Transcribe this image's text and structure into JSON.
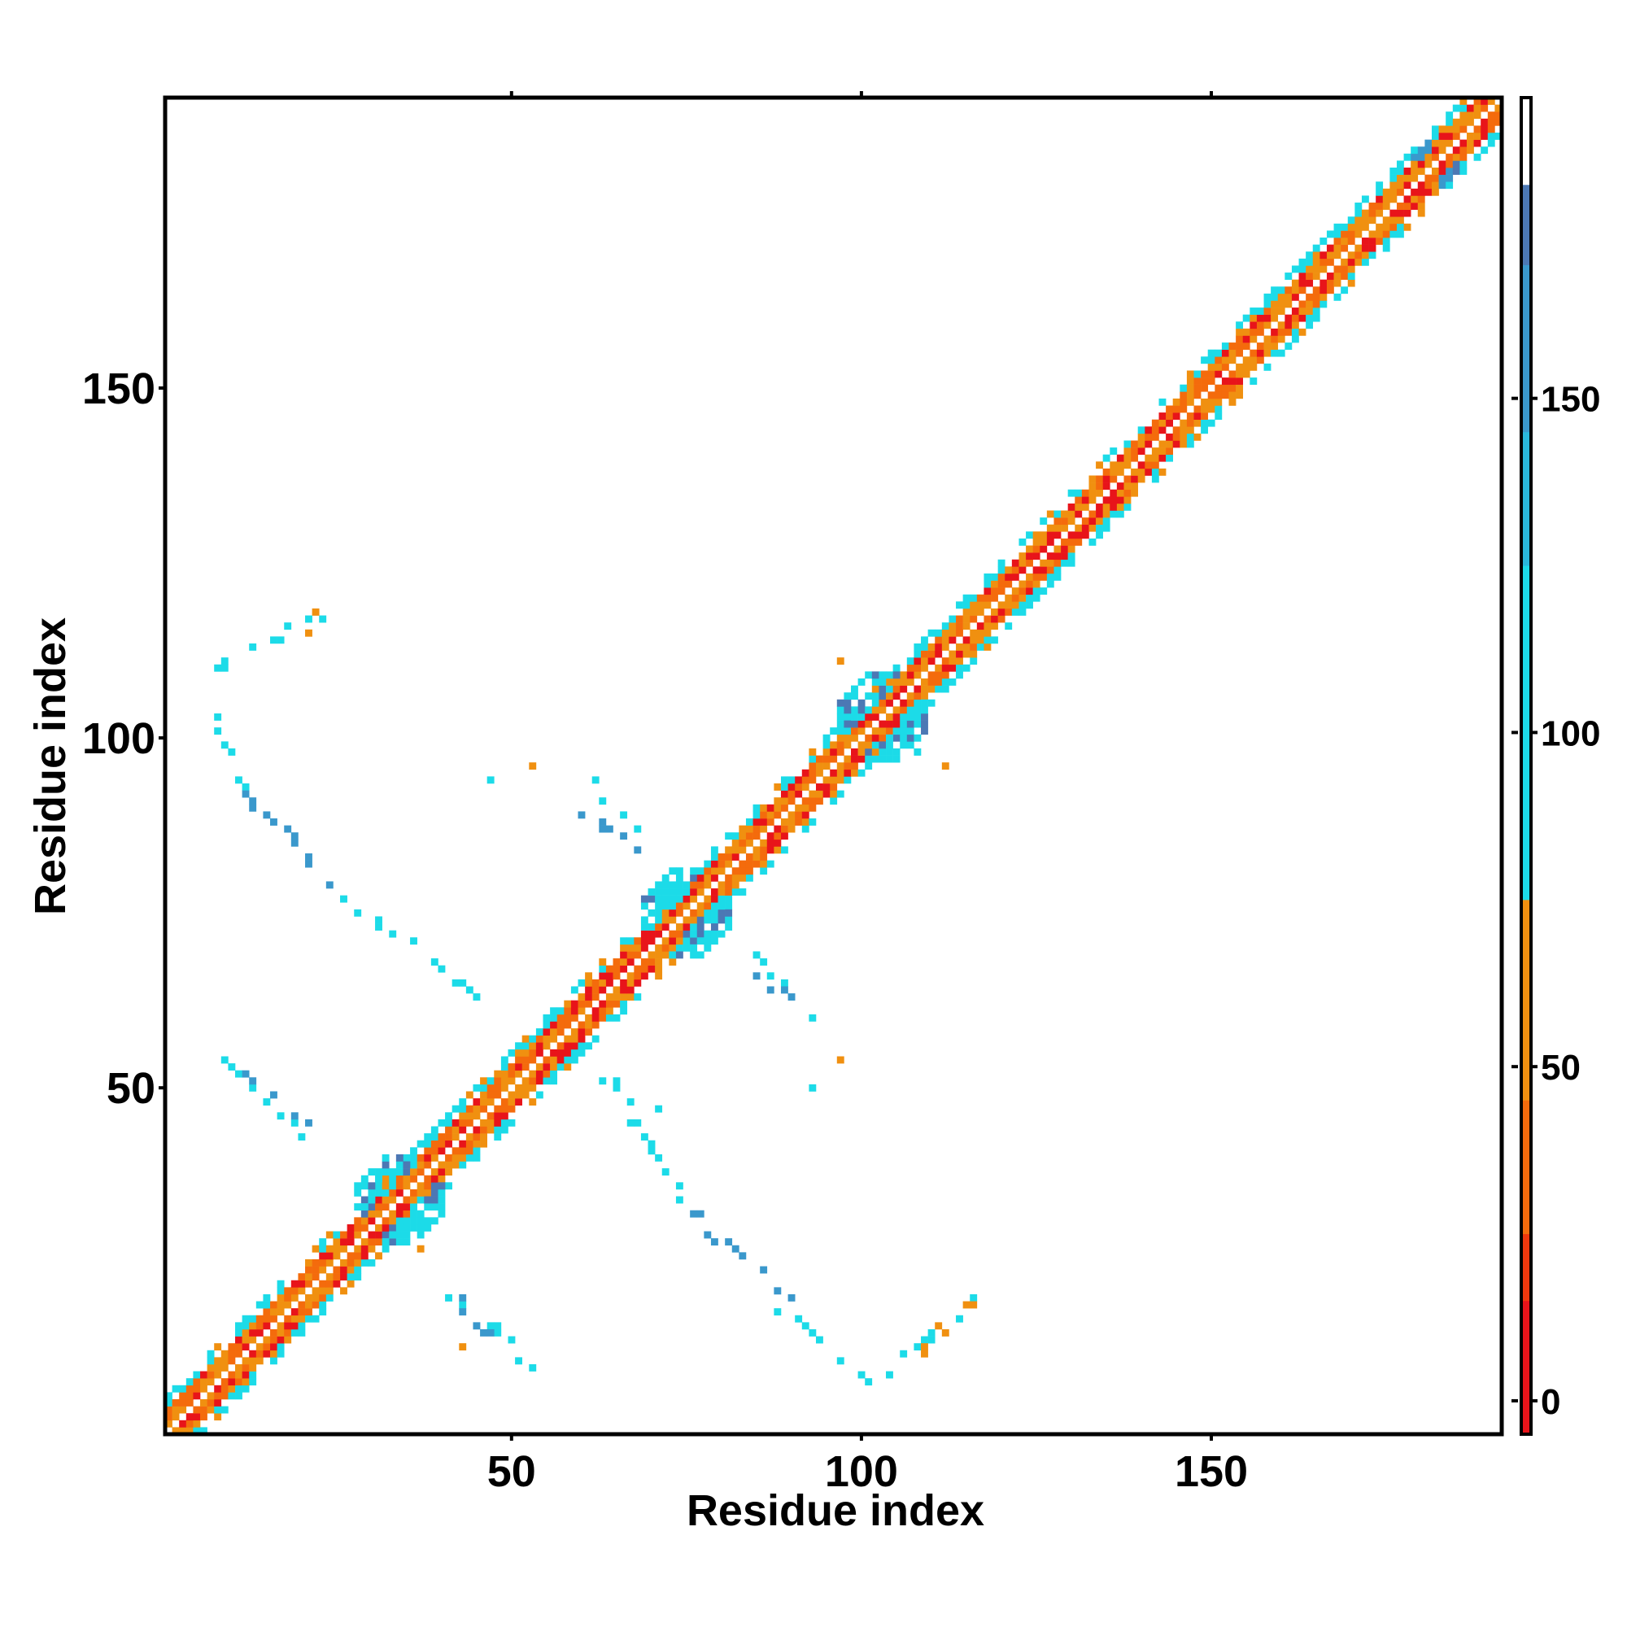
{
  "chart_data": {
    "type": "heatmap",
    "title": "",
    "xlabel": "Residue index",
    "ylabel": "Residue index",
    "xlim": [
      1,
      191
    ],
    "ylim": [
      1,
      191
    ],
    "x_ticks": [
      50,
      100,
      150
    ],
    "y_ticks": [
      50,
      100,
      150
    ],
    "colorbar": {
      "ticks": [
        0,
        50,
        100,
        150
      ],
      "range": [
        -5,
        195
      ],
      "bands": [
        {
          "from": -5,
          "to": 0,
          "color": "#e8141a"
        },
        {
          "from": 0,
          "to": 15,
          "color": "#e8141a"
        },
        {
          "from": 15,
          "to": 25,
          "color": "#f0380d"
        },
        {
          "from": 25,
          "to": 45,
          "color": "#f46b0c"
        },
        {
          "from": 45,
          "to": 75,
          "color": "#f09010"
        },
        {
          "from": 75,
          "to": 125,
          "color": "#1cdbe8"
        },
        {
          "from": 125,
          "to": 145,
          "color": "#2ab8dc"
        },
        {
          "from": 145,
          "to": 170,
          "color": "#3a98cc"
        },
        {
          "from": 170,
          "to": 182,
          "color": "#4c78b4"
        },
        {
          "from": 182,
          "to": 195,
          "color": "#ffffff"
        }
      ]
    },
    "palette": {
      "red": "#e8141a",
      "orange_red": "#f46b0c",
      "orange": "#f09010",
      "cyan": "#1cdbe8",
      "steel": "#3a98cc",
      "blue": "#4c78b4"
    },
    "diagonal_band": {
      "range": [
        1,
        191
      ],
      "offsets": {
        "0": "white",
        "1": "orange",
        "2": "red",
        "3": "orange_red",
        "4": "cyan",
        "5": "cyan"
      }
    },
    "diagonal_clusters": [
      {
        "center": [
          34,
          34
        ],
        "radius": 6,
        "color": "cyan"
      },
      {
        "center": [
          75,
          75
        ],
        "radius": 6,
        "color": "cyan"
      },
      {
        "center": [
          103,
          103
        ],
        "radius": 6,
        "color": "cyan"
      },
      {
        "center": [
          182,
          182
        ],
        "radius": 3,
        "color": "steel"
      }
    ],
    "contact_strands": [
      {
        "from": [
          8,
          110
        ],
        "to": [
          22,
          117
        ],
        "color": "cyan"
      },
      {
        "from": [
          7,
          102
        ],
        "to": [
          12,
          92
        ],
        "color": "cyan"
      },
      {
        "from": [
          12,
          92
        ],
        "to": [
          25,
          78
        ],
        "color": "steel"
      },
      {
        "from": [
          25,
          78
        ],
        "to": [
          45,
          63
        ],
        "color": "cyan"
      },
      {
        "from": [
          9,
          54
        ],
        "to": [
          20,
          44
        ],
        "color": "cyan"
      },
      {
        "from": [
          12,
          52
        ],
        "to": [
          20,
          45
        ],
        "color": "steel"
      },
      {
        "from": [
          59,
          94
        ],
        "to": [
          69,
          87
        ],
        "color": "cyan"
      },
      {
        "from": [
          61,
          89
        ],
        "to": [
          68,
          85
        ],
        "color": "steel"
      },
      {
        "from": [
          84,
          69
        ],
        "to": [
          94,
          60
        ],
        "color": "cyan"
      },
      {
        "from": [
          85,
          66
        ],
        "to": [
          90,
          62
        ],
        "color": "steel"
      },
      {
        "from": [
          42,
          20
        ],
        "to": [
          54,
          9
        ],
        "color": "cyan"
      },
      {
        "from": [
          42,
          19
        ],
        "to": [
          48,
          14
        ],
        "color": "steel"
      },
      {
        "from": [
          64,
          52
        ],
        "to": [
          75,
          33
        ],
        "color": "cyan"
      },
      {
        "from": [
          75,
          33
        ],
        "to": [
          90,
          19
        ],
        "color": "steel"
      },
      {
        "from": [
          88,
          19
        ],
        "to": [
          102,
          7
        ],
        "color": "cyan"
      },
      {
        "from": [
          102,
          7
        ],
        "to": [
          117,
          21
        ],
        "color": "cyan"
      },
      {
        "from": [
          108,
          12
        ],
        "to": [
          117,
          21
        ],
        "color": "orange"
      }
    ],
    "scattered_cells": [
      {
        "x": 53,
        "y": 96,
        "color": "orange"
      },
      {
        "x": 47,
        "y": 94,
        "color": "cyan"
      },
      {
        "x": 97,
        "y": 111,
        "color": "orange"
      },
      {
        "x": 112,
        "y": 96,
        "color": "orange"
      },
      {
        "x": 108,
        "y": 98,
        "color": "cyan"
      },
      {
        "x": 97,
        "y": 54,
        "color": "orange"
      },
      {
        "x": 93,
        "y": 50,
        "color": "cyan"
      },
      {
        "x": 22,
        "y": 118,
        "color": "orange"
      },
      {
        "x": 21,
        "y": 115,
        "color": "orange"
      },
      {
        "x": 59,
        "y": 54,
        "color": "cyan"
      },
      {
        "x": 71,
        "y": 47,
        "color": "cyan"
      },
      {
        "x": 37,
        "y": 27,
        "color": "orange"
      },
      {
        "x": 43,
        "y": 13,
        "color": "orange"
      }
    ]
  }
}
